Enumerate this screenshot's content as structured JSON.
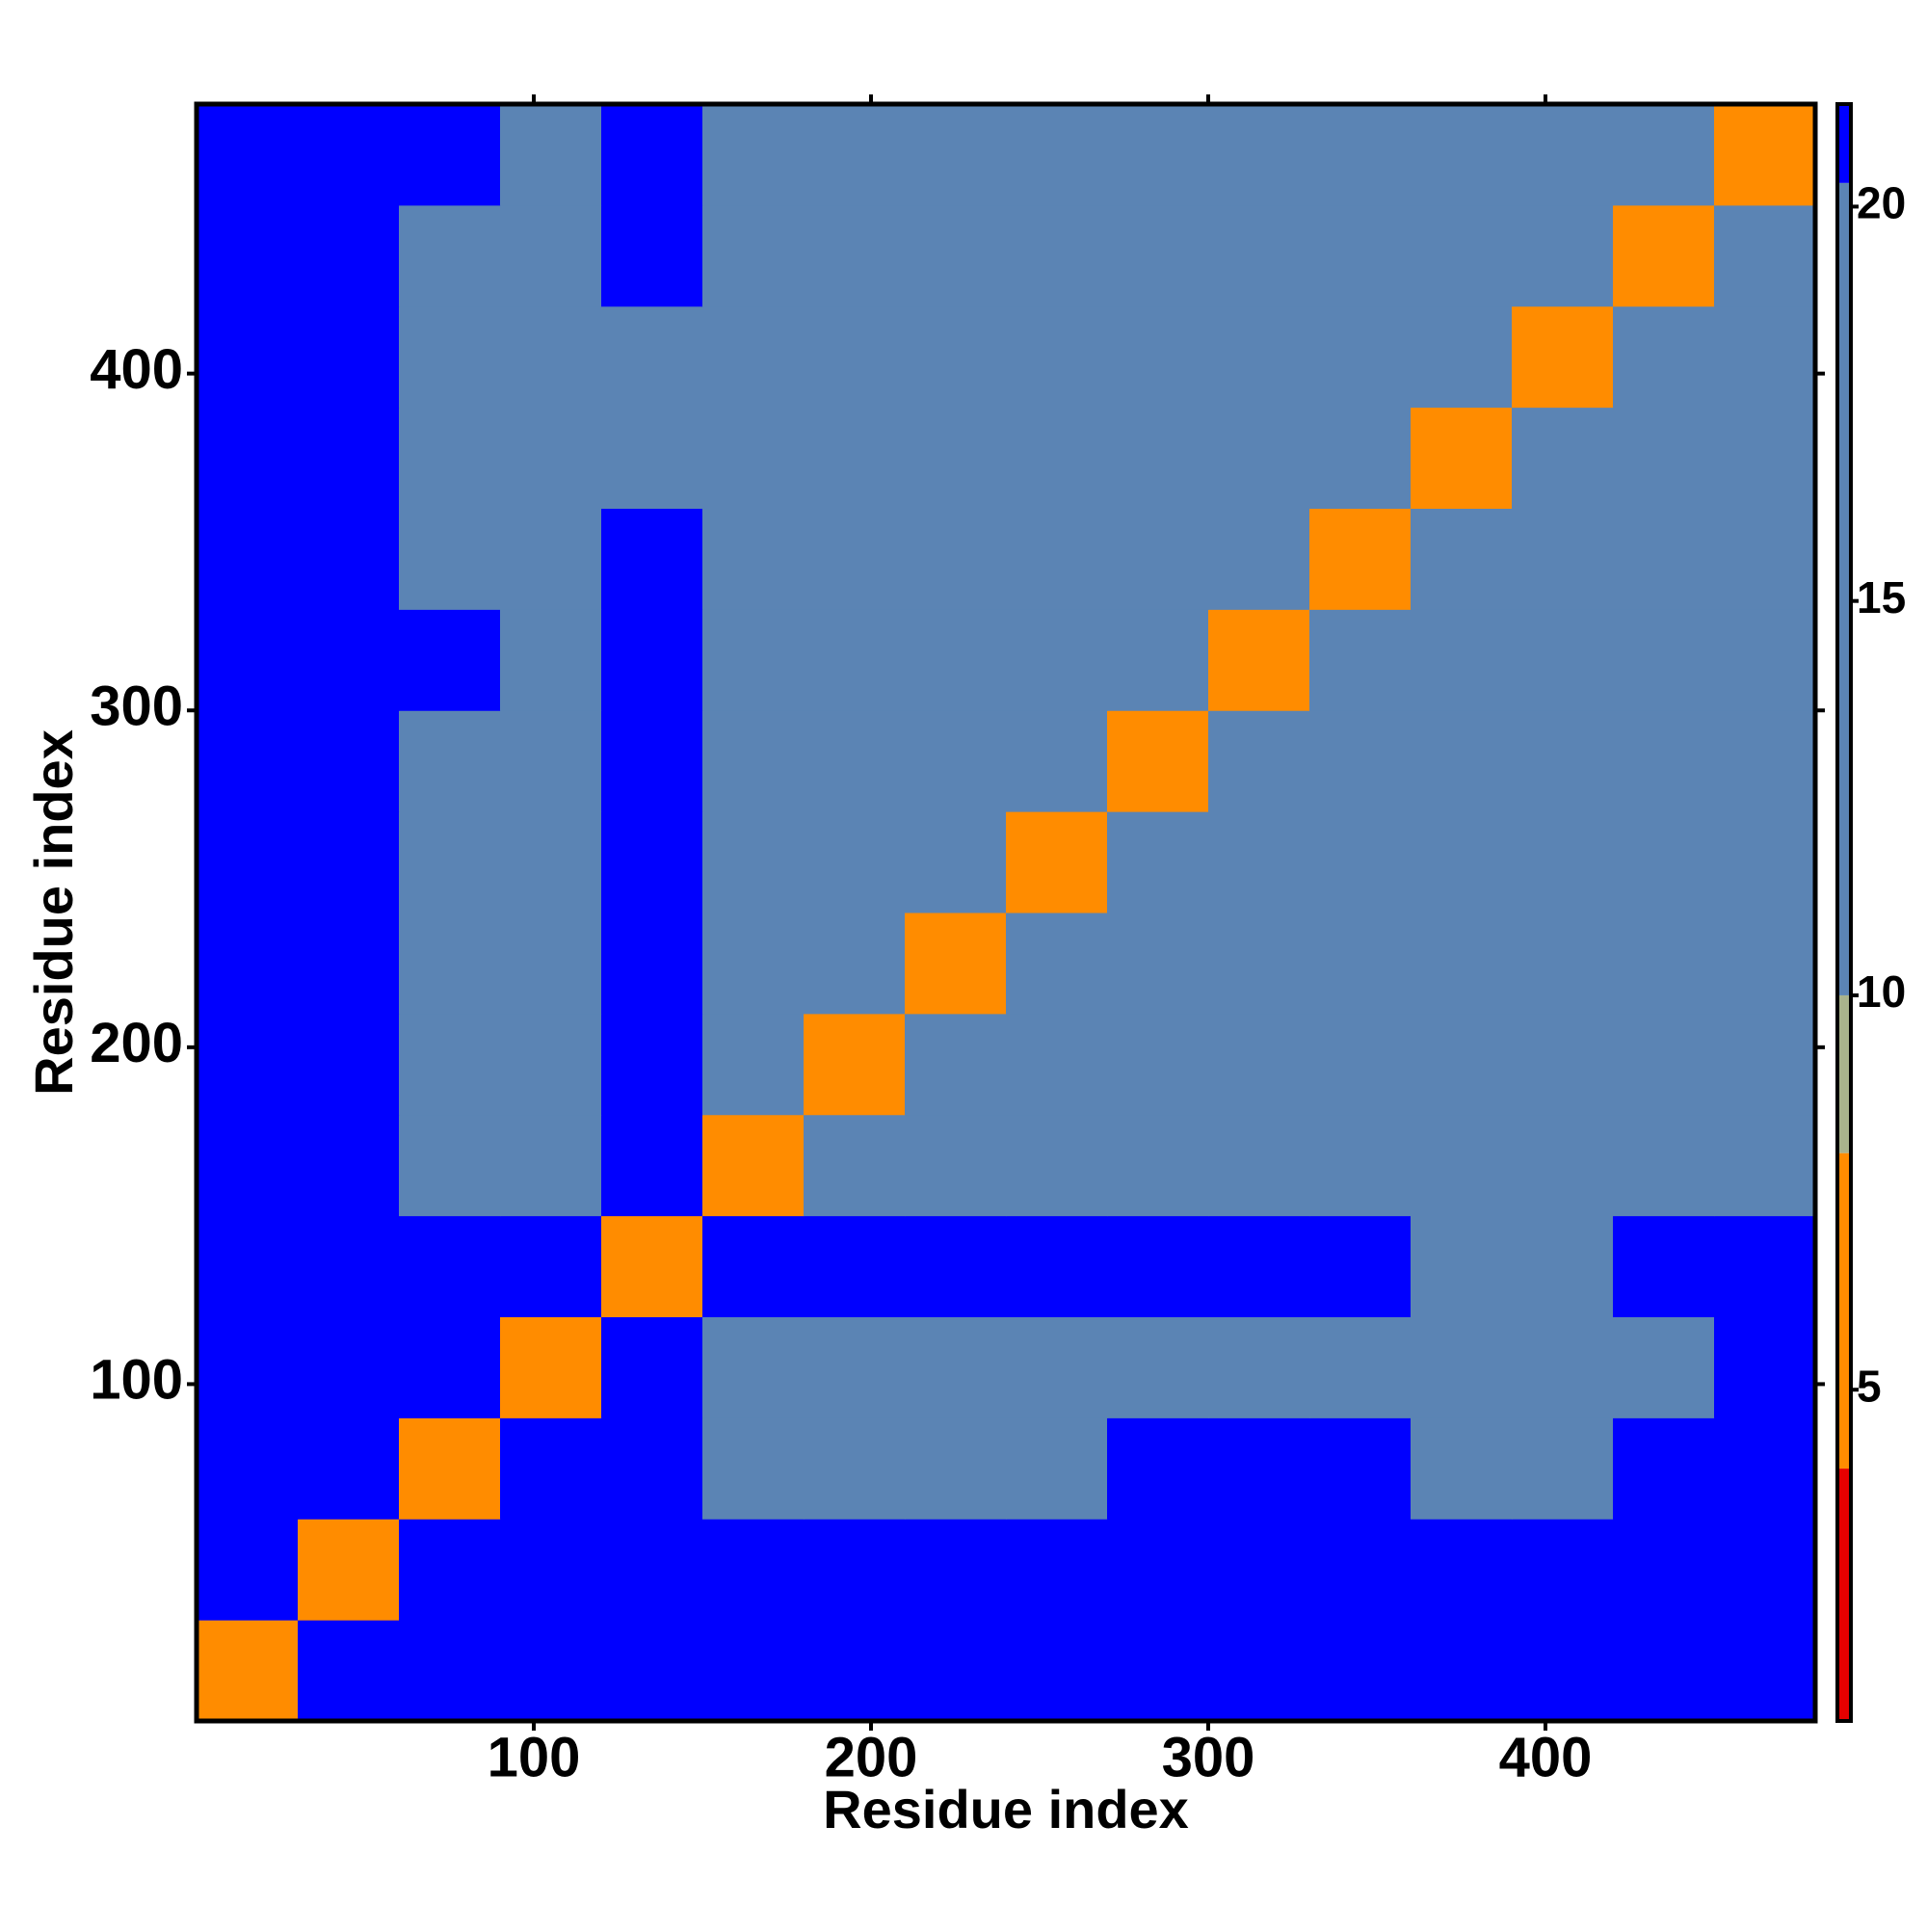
{
  "chart_data": {
    "type": "heatmap",
    "x_label": "Residue index",
    "y_label": "Residue index",
    "xbins": [
      0,
      30,
      60,
      90,
      120,
      150,
      180,
      210,
      240,
      270,
      300,
      330,
      360,
      390,
      420,
      450,
      480
    ],
    "ybins": [
      0,
      30,
      60,
      90,
      120,
      150,
      180,
      210,
      240,
      270,
      300,
      330,
      360,
      390,
      420,
      450,
      480
    ],
    "z": [
      [
        8,
        21,
        21,
        21,
        21,
        21,
        21,
        21,
        21,
        21,
        21,
        21,
        21,
        21,
        21,
        21
      ],
      [
        21,
        8,
        21,
        21,
        21,
        21,
        21,
        21,
        21,
        21,
        21,
        21,
        21,
        21,
        21,
        21
      ],
      [
        21,
        21,
        8,
        21,
        21,
        18,
        18,
        18,
        18,
        21,
        21,
        21,
        18,
        18,
        21,
        21
      ],
      [
        21,
        21,
        21,
        8,
        21,
        14,
        14,
        17,
        17,
        19,
        19,
        19,
        13,
        13,
        18,
        21
      ],
      [
        21,
        21,
        21,
        21,
        8,
        21,
        21,
        21,
        21,
        21,
        21,
        21,
        20,
        20,
        21,
        21
      ],
      [
        21,
        21,
        16,
        16,
        21,
        8,
        18,
        18,
        18,
        18,
        18,
        18,
        18,
        16,
        18,
        18
      ],
      [
        21,
        21,
        17,
        15,
        21,
        15,
        8,
        13,
        18,
        18,
        18,
        18,
        14,
        17,
        18,
        19
      ],
      [
        21,
        21,
        17,
        17,
        21,
        14,
        14,
        8,
        17,
        18,
        18,
        18,
        15,
        17,
        19,
        18
      ],
      [
        21,
        21,
        19,
        19,
        21,
        18,
        17,
        17,
        8,
        17,
        16,
        15,
        17,
        18,
        19,
        19
      ],
      [
        21,
        21,
        19,
        19,
        21,
        17,
        18,
        18,
        16,
        8,
        13,
        16,
        18,
        17,
        19,
        19
      ],
      [
        21,
        21,
        21,
        18,
        21,
        17,
        18,
        17,
        16,
        13,
        8,
        15,
        17,
        17,
        19,
        19
      ],
      [
        21,
        21,
        18,
        18,
        21,
        18,
        18,
        16,
        14,
        16,
        17,
        8,
        15,
        15,
        18,
        17
      ],
      [
        21,
        21,
        18,
        15,
        19,
        17,
        15,
        15,
        18,
        18,
        17,
        16,
        8,
        14,
        17,
        18
      ],
      [
        21,
        21,
        14,
        14,
        20,
        17,
        16,
        18,
        17,
        16,
        17,
        17,
        15,
        8,
        13,
        17
      ],
      [
        21,
        21,
        17,
        17,
        21,
        18,
        17,
        20,
        18,
        19,
        19,
        17,
        16,
        14,
        8,
        16
      ],
      [
        21,
        21,
        21,
        20,
        21,
        19,
        19,
        20,
        19,
        20,
        19,
        19,
        17,
        16,
        16,
        8
      ]
    ],
    "xlim": [
      0,
      480
    ],
    "ylim": [
      0,
      480
    ],
    "xticks": [
      100,
      200,
      300,
      400
    ],
    "yticks": [
      100,
      200,
      300,
      400
    ],
    "clim": [
      0.8,
      21.3
    ],
    "cticks": [
      5,
      10,
      15,
      20
    ],
    "colorscale": [
      {
        "max": 4,
        "color": "#e60000"
      },
      {
        "max": 8,
        "color": "#ff8c00"
      },
      {
        "max": 10,
        "color": "#a9b38c"
      },
      {
        "max": 20.3,
        "color": "#5b84b4"
      },
      {
        "max": 21.3,
        "color": "#0000ff"
      }
    ]
  }
}
